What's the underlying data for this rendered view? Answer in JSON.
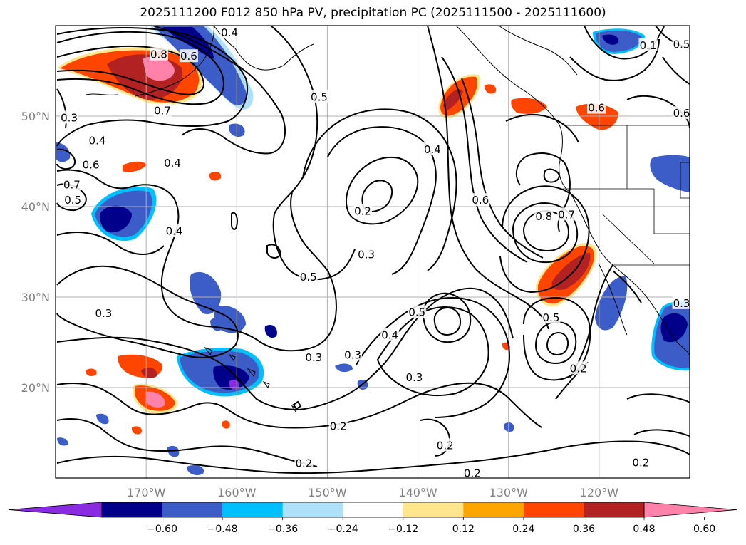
{
  "title": "2025111200 F012 850 hPa PV, precipitation PC (2025111500 - 2025111600)",
  "map": {
    "lon_range": [
      -180,
      -110
    ],
    "lat_range": [
      10,
      60
    ],
    "lon_ticks": [
      {
        "value": -170,
        "label": "170°W"
      },
      {
        "value": -160,
        "label": "160°W"
      },
      {
        "value": -150,
        "label": "150°W"
      },
      {
        "value": -140,
        "label": "140°W"
      },
      {
        "value": -130,
        "label": "130°W"
      },
      {
        "value": -120,
        "label": "120°W"
      }
    ],
    "lat_ticks": [
      {
        "value": 20,
        "label": "20°N"
      },
      {
        "value": 30,
        "label": "30°N"
      },
      {
        "value": 40,
        "label": "40°N"
      },
      {
        "value": 50,
        "label": "50°N"
      }
    ],
    "gridlines": true,
    "contour_color": "#000000",
    "contour_labels": [
      {
        "text": "0.8",
        "lon": -168.6,
        "lat": 56.8
      },
      {
        "text": "0.6",
        "lon": -165.3,
        "lat": 56.6
      },
      {
        "text": "0.4",
        "lon": -160.8,
        "lat": 59.2
      },
      {
        "text": "0.5",
        "lon": -150.9,
        "lat": 52.1
      },
      {
        "text": "0.7",
        "lon": -168.2,
        "lat": 50.6
      },
      {
        "text": "0.3",
        "lon": -178.5,
        "lat": 49.8
      },
      {
        "text": "0.4",
        "lon": -175.4,
        "lat": 47.3
      },
      {
        "text": "0.6",
        "lon": -176.1,
        "lat": 44.6
      },
      {
        "text": "0.4",
        "lon": -167.1,
        "lat": 44.8
      },
      {
        "text": "0.7",
        "lon": -178.2,
        "lat": 42.4
      },
      {
        "text": "0.5",
        "lon": -178.1,
        "lat": 40.7
      },
      {
        "text": "0.4",
        "lon": -166.9,
        "lat": 37.3
      },
      {
        "text": "0.2",
        "lon": -146.1,
        "lat": 39.5
      },
      {
        "text": "0.3",
        "lon": -145.7,
        "lat": 34.7
      },
      {
        "text": "0.5",
        "lon": -152.1,
        "lat": 32.2
      },
      {
        "text": "0.3",
        "lon": -174.7,
        "lat": 28.2
      },
      {
        "text": "0.4",
        "lon": -138.4,
        "lat": 46.3
      },
      {
        "text": "0.6",
        "lon": -133.1,
        "lat": 40.7
      },
      {
        "text": "0.8",
        "lon": -126.1,
        "lat": 38.9
      },
      {
        "text": "0.7",
        "lon": -123.6,
        "lat": 39.1
      },
      {
        "text": "0.5",
        "lon": -140.1,
        "lat": 28.3
      },
      {
        "text": "0.4",
        "lon": -143.1,
        "lat": 25.8
      },
      {
        "text": "0.3",
        "lon": -147.2,
        "lat": 23.6
      },
      {
        "text": "0.3",
        "lon": -151.5,
        "lat": 23.3
      },
      {
        "text": "0.3",
        "lon": -140.4,
        "lat": 21.1
      },
      {
        "text": "0.5",
        "lon": -125.3,
        "lat": 27.7
      },
      {
        "text": "0.2",
        "lon": -122.3,
        "lat": 22.1
      },
      {
        "text": "0.2",
        "lon": -148.8,
        "lat": 15.7
      },
      {
        "text": "0.2",
        "lon": -137.0,
        "lat": 13.6
      },
      {
        "text": "0.2",
        "lon": -152.6,
        "lat": 11.6
      },
      {
        "text": "0.2",
        "lon": -134.0,
        "lat": 10.5
      },
      {
        "text": "0.2",
        "lon": -115.4,
        "lat": 11.7
      },
      {
        "text": "0.5",
        "lon": -110.9,
        "lat": 57.9
      },
      {
        "text": "0.6",
        "lon": -110.9,
        "lat": 50.3
      },
      {
        "text": "0.6",
        "lon": -120.3,
        "lat": 50.9
      },
      {
        "text": "0.3",
        "lon": -110.9,
        "lat": 29.3
      },
      {
        "text": "0.1",
        "lon": -114.6,
        "lat": 57.8
      }
    ]
  },
  "colorbar": {
    "levels": [
      "−0.60",
      "−0.48",
      "−0.36",
      "−0.24",
      "−0.12",
      "0.12",
      "0.24",
      "0.36",
      "0.48",
      "0.60"
    ],
    "colors": [
      "#8a2be2",
      "#00008b",
      "#3c5cc8",
      "#00bfff",
      "#aee0fa",
      "#ffffff",
      "#ffe68c",
      "#ffa500",
      "#ff4500",
      "#b22222",
      "#ff82aa"
    ]
  }
}
